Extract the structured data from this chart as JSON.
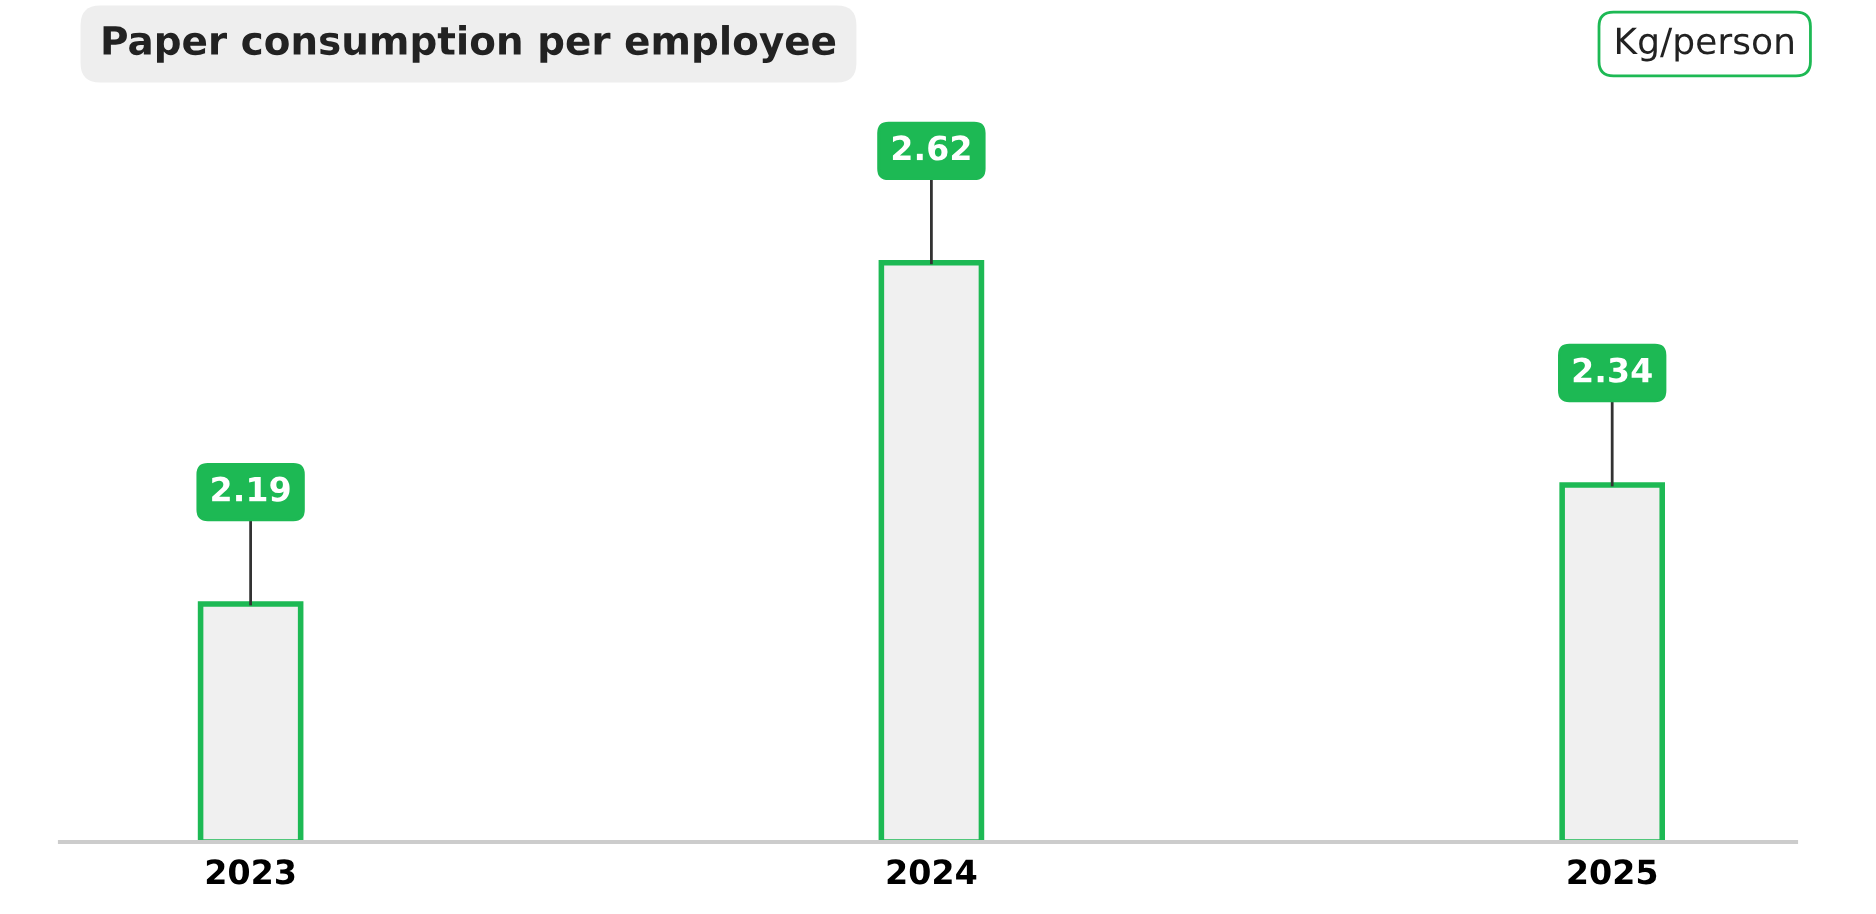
{
  "chart_data": {
    "type": "bar",
    "title": "Paper consumption per employee",
    "ylabel": "Kg/person",
    "categories": [
      "2023",
      "2024",
      "2025"
    ],
    "values": [
      2.19,
      2.62,
      2.34
    ],
    "color": "#f0f0f0",
    "ylim": [
      1.89,
      2.8
    ],
    "tick_labels": "x",
    "data_labels": true,
    "grid": false,
    "legend": false
  }
}
